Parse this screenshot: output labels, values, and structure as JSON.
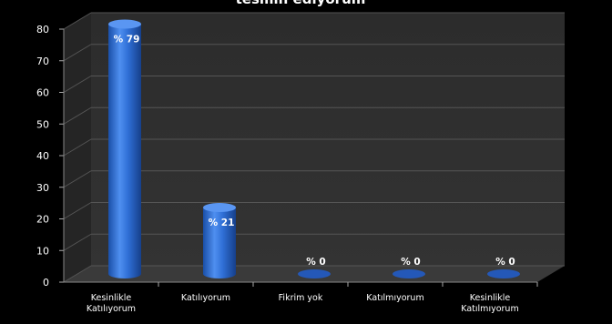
{
  "chart_data": {
    "type": "bar",
    "title": "tesmih ediyorum",
    "categories": [
      "Kesinlikle Katılıyorum",
      "Katılıyorum",
      "Fikrim yok",
      "Katılmıyorum",
      "Kesinlikle Katılmıyorum"
    ],
    "category_lines": [
      [
        "Kesinlikle",
        "Katılıyorum"
      ],
      [
        "Katılıyorum"
      ],
      [
        "Fikrim yok"
      ],
      [
        "Katılmıyorum"
      ],
      [
        "Kesinlikle",
        "Katılmıyorum"
      ]
    ],
    "values": [
      79,
      21,
      0,
      0,
      0
    ],
    "data_labels": [
      "% 79",
      "% 21",
      "% 0",
      "% 0",
      "% 0"
    ],
    "ylim": [
      0,
      80
    ],
    "yticks": [
      0,
      10,
      20,
      30,
      40,
      50,
      60,
      70,
      80
    ],
    "grid": true,
    "legend": "none",
    "bar_color": "#2f6fd6",
    "wall_color": "#2e2e2e",
    "floor_color": "#3a3a3a",
    "background_color": "#000000"
  }
}
